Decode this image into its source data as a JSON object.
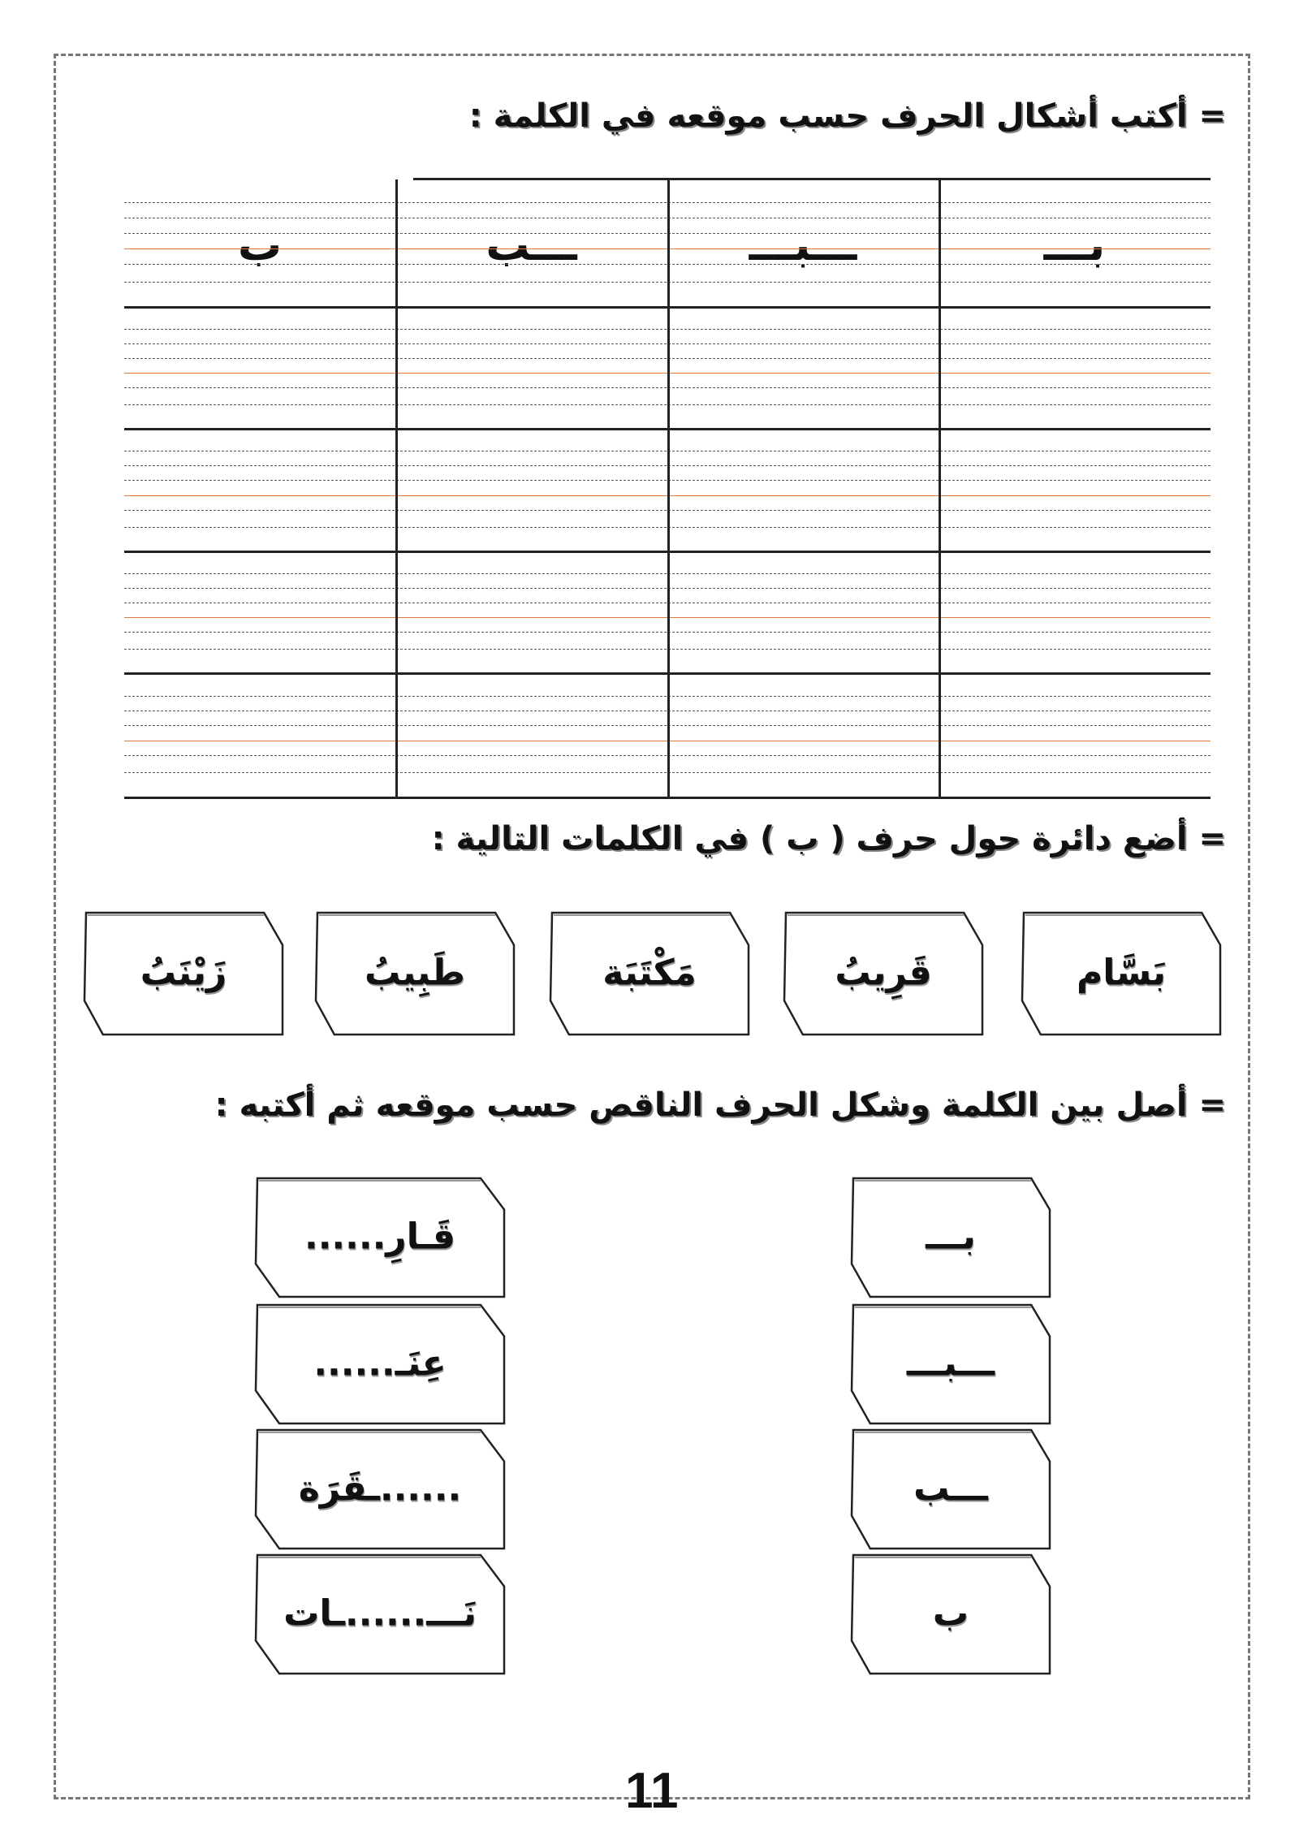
{
  "section1": {
    "title": "= أكتب أشكال الحرف حسب موقعه في الكلمة :",
    "headers": [
      "بـــ",
      "ـــبـــ",
      "ـــب",
      "ب"
    ]
  },
  "section2": {
    "title": "= أضع دائرة حول حرف ( ب ) في الكلمات التالية :",
    "words": [
      "بَسَّام",
      "قَرِيبُ",
      "مَكْتَبَة",
      "طَبِيبُ",
      "زَيْنَبُ"
    ]
  },
  "section3": {
    "title": "= أصل بين الكلمة وشكل الحرف الناقص حسب موقعه ثم أكتبه :",
    "words": [
      "قَـارِ......",
      "عِنَـ......",
      "......ـقَرَة",
      "نَـــ......ـات"
    ],
    "letters": [
      "بـــ",
      "ـــبـــ",
      "ـــب",
      "ب"
    ]
  },
  "page_number": "11"
}
